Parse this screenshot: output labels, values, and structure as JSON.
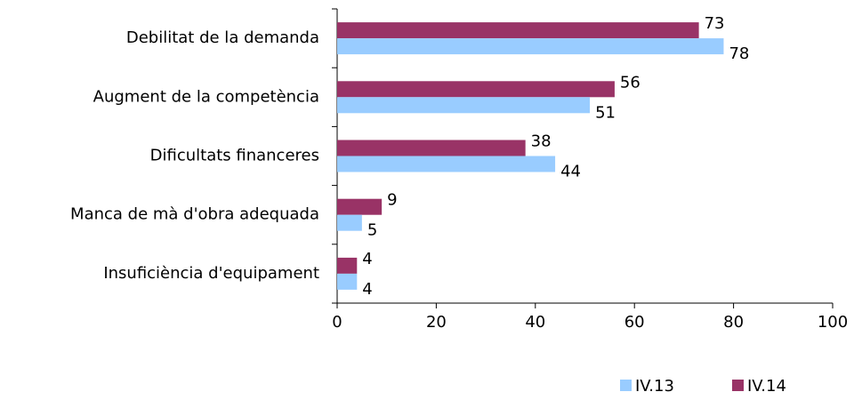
{
  "chart_data": {
    "type": "hbar",
    "categories": [
      "Debilitat de la demanda",
      "Augment de la competència",
      "Dificultats financeres",
      "Manca de mà d'obra adequada",
      "Insuficiència d'equipament"
    ],
    "series": [
      {
        "name": "IV.13",
        "color": "#99ccff",
        "values": [
          78,
          51,
          44,
          5,
          4
        ]
      },
      {
        "name": "IV.14",
        "color": "#993366",
        "values": [
          73,
          56,
          38,
          9,
          4
        ]
      }
    ],
    "xlim": [
      0,
      100
    ],
    "xticks": [
      0,
      20,
      40,
      60,
      80,
      100
    ],
    "grid": false,
    "legend": "bottom"
  }
}
